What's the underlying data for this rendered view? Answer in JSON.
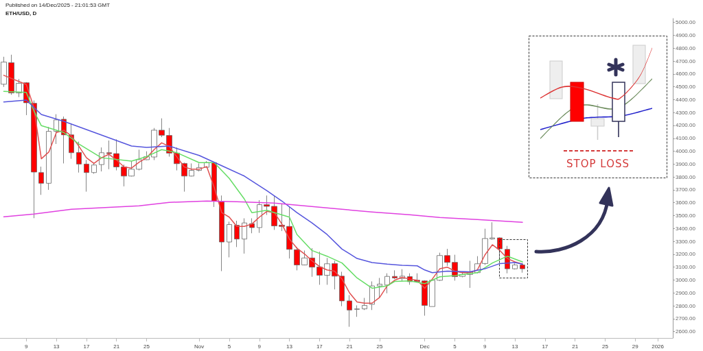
{
  "chart_data": {
    "type": "candlestick",
    "title": "ETH/USD, D",
    "subtitle": "Published on 14/Dec/2025 - 21:01:53 GMT",
    "annotations": [
      "STOP LOSS"
    ],
    "x": [
      "2025-10-06",
      "2025-10-07",
      "2025-10-08",
      "2025-10-09",
      "2025-10-10",
      "2025-10-11",
      "2025-10-12",
      "2025-10-13",
      "2025-10-14",
      "2025-10-15",
      "2025-10-16",
      "2025-10-17",
      "2025-10-18",
      "2025-10-19",
      "2025-10-20",
      "2025-10-21",
      "2025-10-22",
      "2025-10-23",
      "2025-10-24",
      "2025-10-25",
      "2025-10-26",
      "2025-10-27",
      "2025-10-28",
      "2025-10-29",
      "2025-10-30",
      "2025-10-31",
      "2025-11-01",
      "2025-11-02",
      "2025-11-03",
      "2025-11-04",
      "2025-11-05",
      "2025-11-06",
      "2025-11-07",
      "2025-11-08",
      "2025-11-09",
      "2025-11-10",
      "2025-11-11",
      "2025-11-12",
      "2025-11-13",
      "2025-11-14",
      "2025-11-15",
      "2025-11-16",
      "2025-11-17",
      "2025-11-18",
      "2025-11-19",
      "2025-11-20",
      "2025-11-21",
      "2025-11-22",
      "2025-11-23",
      "2025-11-24",
      "2025-11-25",
      "2025-11-26",
      "2025-11-27",
      "2025-11-28",
      "2025-11-29",
      "2025-11-30",
      "2025-12-01",
      "2025-12-02",
      "2025-12-03",
      "2025-12-04",
      "2025-12-05",
      "2025-12-06",
      "2025-12-07",
      "2025-12-08",
      "2025-12-09",
      "2025-12-10",
      "2025-12-11",
      "2025-12-12",
      "2025-12-13",
      "2025-12-14"
    ],
    "ohlc": [
      [
        4520,
        4733,
        4499,
        4692
      ],
      [
        4687,
        4749,
        4438,
        4452
      ],
      [
        4452,
        4560,
        4420,
        4527
      ],
      [
        4531,
        4536,
        4280,
        4376
      ],
      [
        4372,
        4394,
        3480,
        3838
      ],
      [
        3834,
        3880,
        3661,
        3751
      ],
      [
        3751,
        4189,
        3700,
        4154
      ],
      [
        4154,
        4287,
        4056,
        4243
      ],
      [
        4248,
        4269,
        3905,
        4127
      ],
      [
        4127,
        4216,
        3941,
        3988
      ],
      [
        3990,
        4074,
        3834,
        3900
      ],
      [
        3900,
        3932,
        3686,
        3834
      ],
      [
        3834,
        3905,
        3825,
        3893
      ],
      [
        3896,
        4029,
        3843,
        3988
      ],
      [
        3988,
        4083,
        3860,
        3981
      ],
      [
        3981,
        4092,
        3851,
        3878
      ],
      [
        3878,
        3896,
        3727,
        3807
      ],
      [
        3807,
        3923,
        3804,
        3860
      ],
      [
        3860,
        4012,
        3851,
        3934
      ],
      [
        3934,
        3999,
        3931,
        3957
      ],
      [
        3955,
        4180,
        3931,
        4163
      ],
      [
        4163,
        4255,
        4109,
        4124
      ],
      [
        4122,
        4180,
        3958,
        3985
      ],
      [
        3985,
        4029,
        3851,
        3903
      ],
      [
        3905,
        3911,
        3686,
        3807
      ],
      [
        3807,
        3905,
        3804,
        3851
      ],
      [
        3851,
        3905,
        3843,
        3873
      ],
      [
        3875,
        3923,
        3873,
        3911
      ],
      [
        3911,
        3917,
        3567,
        3612
      ],
      [
        3608,
        3656,
        3069,
        3295
      ],
      [
        3295,
        3453,
        3176,
        3431
      ],
      [
        3425,
        3460,
        3256,
        3318
      ],
      [
        3318,
        3479,
        3205,
        3443
      ],
      [
        3437,
        3479,
        3363,
        3407
      ],
      [
        3407,
        3620,
        3366,
        3585
      ],
      [
        3585,
        3656,
        3505,
        3572
      ],
      [
        3572,
        3656,
        3389,
        3420
      ],
      [
        3426,
        3594,
        3380,
        3416
      ],
      [
        3416,
        3567,
        3167,
        3238
      ],
      [
        3235,
        3256,
        3075,
        3117
      ],
      [
        3117,
        3229,
        3114,
        3171
      ],
      [
        3171,
        3247,
        3025,
        3100
      ],
      [
        3101,
        3220,
        2963,
        3037
      ],
      [
        3037,
        3171,
        2963,
        3126
      ],
      [
        3128,
        3149,
        2927,
        3030
      ],
      [
        3030,
        3064,
        2797,
        2838
      ],
      [
        2838,
        2883,
        2637,
        2767
      ],
      [
        2772,
        2803,
        2714,
        2776
      ],
      [
        2776,
        2861,
        2767,
        2803
      ],
      [
        2811,
        2989,
        2767,
        2954
      ],
      [
        2954,
        3016,
        2865,
        2968
      ],
      [
        2961,
        3052,
        2897,
        3028
      ],
      [
        3028,
        3075,
        3007,
        3016
      ],
      [
        3012,
        3084,
        2989,
        3030
      ],
      [
        3026,
        3052,
        2963,
        2987
      ],
      [
        2998,
        3052,
        2989,
        2989
      ],
      [
        2993,
        2998,
        2723,
        2803
      ],
      [
        2794,
        3007,
        2794,
        2998
      ],
      [
        2998,
        3212,
        2993,
        3190
      ],
      [
        3190,
        3242,
        3110,
        3137
      ],
      [
        3137,
        3196,
        2995,
        3026
      ],
      [
        3028,
        3064,
        3021,
        3043
      ],
      [
        3043,
        3149,
        2939,
        3061
      ],
      [
        3057,
        3185,
        3052,
        3126
      ],
      [
        3128,
        3398,
        3117,
        3322
      ],
      [
        3319,
        3448,
        3313,
        3327
      ],
      [
        3327,
        3331,
        3153,
        3242
      ],
      [
        3238,
        3265,
        3052,
        3087
      ],
      [
        3087,
        3128,
        3082,
        3117
      ],
      [
        3117,
        3132,
        3057,
        3087
      ]
    ],
    "colors": [
      "#ffffff",
      "#ff0000",
      "#ffffff",
      "#ff0000",
      "#ff0000",
      "#ff0000",
      "#ffffff",
      "#ffffff",
      "#ff0000",
      "#ff0000",
      "#ff0000",
      "#ff0000",
      "#ffffff",
      "#ffffff",
      "#ff0000",
      "#ff0000",
      "#ff0000",
      "#ffffff",
      "#ffffff",
      "#ffffff",
      "#ffffff",
      "#ff0000",
      "#ff0000",
      "#ff0000",
      "#ff0000",
      "#ffffff",
      "#ffffff",
      "#ffffff",
      "#ff0000",
      "#ff0000",
      "#ffffff",
      "#ff0000",
      "#ffffff",
      "#ff0000",
      "#ffffff",
      "#ff0000",
      "#ff0000",
      "#ff0000",
      "#ff0000",
      "#ff0000",
      "#ffffff",
      "#ff0000",
      "#ff0000",
      "#ffffff",
      "#ff0000",
      "#ff0000",
      "#ff0000",
      "#ffffff",
      "#ffffff",
      "#ffffff",
      "#ffffff",
      "#ffffff",
      "#ff0000",
      "#ffffff",
      "#ff0000",
      "#ff0000",
      "#ff0000",
      "#ffffff",
      "#ffffff",
      "#ff0000",
      "#ff0000",
      "#ffffff",
      "#ffffff",
      "#ffffff",
      "#ffffff",
      "#ffffff",
      "#ff0000",
      "#ff0000",
      "#ffffff",
      "#ff0000"
    ],
    "series": [
      {
        "type": "line",
        "color": "#e040e0",
        "x": [
          "2025-10-06",
          "2025-10-10",
          "2025-10-15",
          "2025-10-24",
          "2025-10-28",
          "2025-11-02",
          "2025-11-06",
          "2025-11-11",
          "2025-11-15",
          "2025-11-20",
          "2025-11-24",
          "2025-11-29",
          "2025-12-03",
          "2025-12-08",
          "2025-12-14"
        ],
        "values": [
          3491,
          3512,
          3549,
          3576,
          3603,
          3613,
          3608,
          3597,
          3576,
          3549,
          3528,
          3507,
          3485,
          3469,
          3448
        ]
      },
      {
        "type": "line",
        "color": "#5555dd",
        "x": [
          "2025-10-06",
          "2025-10-09",
          "2025-10-11",
          "2025-10-14",
          "2025-10-19",
          "2025-10-23",
          "2025-10-25",
          "2025-10-28",
          "2025-11-01",
          "2025-11-04",
          "2025-11-07",
          "2025-11-10",
          "2025-11-12",
          "2025-11-14",
          "2025-11-16",
          "2025-11-18",
          "2025-11-20",
          "2025-11-22",
          "2025-11-24",
          "2025-11-26",
          "2025-11-28",
          "2025-11-30",
          "2025-12-01",
          "2025-12-02",
          "2025-12-04",
          "2025-12-07",
          "2025-12-09",
          "2025-12-11",
          "2025-12-13",
          "2025-12-14"
        ],
        "values": [
          4382,
          4397,
          4285,
          4232,
          4125,
          4040,
          4029,
          4040,
          3967,
          3887,
          3807,
          3693,
          3613,
          3523,
          3443,
          3354,
          3240,
          3167,
          3135,
          3123,
          3114,
          3110,
          3078,
          3057,
          3069,
          3064,
          3087,
          3128,
          3135,
          3123
        ]
      },
      {
        "type": "line",
        "color": "#66dd66",
        "x": [
          "2025-10-06",
          "2025-10-09",
          "2025-10-10",
          "2025-10-11",
          "2025-10-14",
          "2025-10-16",
          "2025-10-19",
          "2025-10-23",
          "2025-10-25",
          "2025-10-27",
          "2025-10-29",
          "2025-11-01",
          "2025-11-03",
          "2025-11-05",
          "2025-11-07",
          "2025-11-08",
          "2025-11-10",
          "2025-11-13",
          "2025-11-14",
          "2025-11-16",
          "2025-11-18",
          "2025-11-20",
          "2025-11-22",
          "2025-11-24",
          "2025-11-26",
          "2025-11-27",
          "2025-11-29",
          "2025-12-01",
          "2025-12-03",
          "2025-12-05",
          "2025-12-08",
          "2025-12-10",
          "2025-12-12",
          "2025-12-14"
        ],
        "values": [
          4465,
          4456,
          4314,
          4198,
          4145,
          4056,
          3949,
          3923,
          3958,
          4012,
          3989,
          3911,
          3911,
          3789,
          3629,
          3523,
          3541,
          3488,
          3354,
          3229,
          3185,
          3132,
          3016,
          2936,
          2954,
          2989,
          2993,
          2972,
          3025,
          3034,
          3057,
          3132,
          3185,
          3141
        ]
      },
      {
        "type": "line",
        "color": "#e05050",
        "x": [
          "2025-10-06",
          "2025-10-09",
          "2025-10-10",
          "2025-10-11",
          "2025-10-12",
          "2025-10-13",
          "2025-10-14",
          "2025-10-15",
          "2025-10-16",
          "2025-10-17",
          "2025-10-18",
          "2025-10-19",
          "2025-10-20",
          "2025-10-21",
          "2025-10-22",
          "2025-10-23",
          "2025-10-24",
          "2025-10-25",
          "2025-10-26",
          "2025-10-27",
          "2025-10-28",
          "2025-10-29",
          "2025-10-30",
          "2025-10-31",
          "2025-11-01",
          "2025-11-02",
          "2025-11-03",
          "2025-11-04",
          "2025-11-05",
          "2025-11-06",
          "2025-11-07",
          "2025-11-08",
          "2025-11-09",
          "2025-11-10",
          "2025-11-11",
          "2025-11-12",
          "2025-11-13",
          "2025-11-14",
          "2025-11-15",
          "2025-11-16",
          "2025-11-17",
          "2025-11-18",
          "2025-11-19",
          "2025-11-20",
          "2025-11-21",
          "2025-11-22",
          "2025-11-23",
          "2025-11-24",
          "2025-11-25",
          "2025-11-26",
          "2025-11-27",
          "2025-11-28",
          "2025-11-29",
          "2025-11-30",
          "2025-12-01",
          "2025-12-02",
          "2025-12-03",
          "2025-12-04",
          "2025-12-05",
          "2025-12-06",
          "2025-12-07",
          "2025-12-08",
          "2025-12-09",
          "2025-12-10",
          "2025-12-11",
          "2025-12-12",
          "2025-12-13",
          "2025-12-14"
        ],
        "values": [
          4589,
          4518,
          4341,
          3941,
          3994,
          4145,
          4163,
          4118,
          4038,
          3949,
          3905,
          3949,
          3976,
          3932,
          3878,
          3869,
          3914,
          3949,
          4012,
          4065,
          4038,
          3958,
          3878,
          3860,
          3860,
          3881,
          3718,
          3523,
          3488,
          3416,
          3416,
          3434,
          3488,
          3533,
          3523,
          3434,
          3318,
          3247,
          3203,
          3149,
          3105,
          3078,
          3069,
          3007,
          2900,
          2829,
          2820,
          2820,
          2865,
          2954,
          2998,
          3021,
          3007,
          2998,
          2936,
          3007,
          3087,
          3100,
          3069,
          3057,
          3057,
          3078,
          3194,
          3274,
          3229,
          3167,
          3141,
          3123
        ]
      }
    ],
    "xlim": [
      "2025-10-05T12:00",
      "2026-01-03"
    ],
    "xticks": [
      {
        "value": "2025-10-09",
        "label": "9"
      },
      {
        "value": "2025-10-13",
        "label": "13"
      },
      {
        "value": "2025-10-17",
        "label": "17"
      },
      {
        "value": "2025-10-21",
        "label": "21"
      },
      {
        "value": "2025-10-25",
        "label": "25"
      },
      {
        "value": "2025-11-01",
        "label": "Nov"
      },
      {
        "value": "2025-11-05",
        "label": "5"
      },
      {
        "value": "2025-11-09",
        "label": "9"
      },
      {
        "value": "2025-11-13",
        "label": "13"
      },
      {
        "value": "2025-11-17",
        "label": "17"
      },
      {
        "value": "2025-11-21",
        "label": "21"
      },
      {
        "value": "2025-11-25",
        "label": "25"
      },
      {
        "value": "2025-12-01",
        "label": "Dec"
      },
      {
        "value": "2025-12-05",
        "label": "5"
      },
      {
        "value": "2025-12-09",
        "label": "9"
      },
      {
        "value": "2025-12-13",
        "label": "13"
      },
      {
        "value": "2025-12-17",
        "label": "17"
      },
      {
        "value": "2025-12-21",
        "label": "21"
      },
      {
        "value": "2025-12-25",
        "label": "25"
      },
      {
        "value": "2025-12-29",
        "label": "29"
      },
      {
        "value": "2026-01-01",
        "label": "2026"
      }
    ],
    "ylim": [
      2550,
      5030
    ],
    "yticks": [
      {
        "value": 2600,
        "label": "2600.00"
      },
      {
        "value": 2700,
        "label": "2700.00"
      },
      {
        "value": 2800,
        "label": "2800.00"
      },
      {
        "value": 2900,
        "label": "2900.00"
      },
      {
        "value": 3000,
        "label": "3000.00"
      },
      {
        "value": 3100,
        "label": "3100.00"
      },
      {
        "value": 3200,
        "label": "3200.00"
      },
      {
        "value": 3300,
        "label": "3300.00"
      },
      {
        "value": 3400,
        "label": "3400.00"
      },
      {
        "value": 3500,
        "label": "3500.00"
      },
      {
        "value": 3600,
        "label": "3600.00"
      },
      {
        "value": 3700,
        "label": "3700.00"
      },
      {
        "value": 3800,
        "label": "3800.00"
      },
      {
        "value": 3900,
        "label": "3900.00"
      },
      {
        "value": 4000,
        "label": "4000.00"
      },
      {
        "value": 4100,
        "label": "4100.00"
      },
      {
        "value": 4200,
        "label": "4200.00"
      },
      {
        "value": 4300,
        "label": "4300.00"
      },
      {
        "value": 4400,
        "label": "4400.00"
      },
      {
        "value": 4500,
        "label": "4500.00"
      },
      {
        "value": 4600,
        "label": "4600.00"
      },
      {
        "value": 4700,
        "label": "4700.00"
      },
      {
        "value": 4800,
        "label": "4800.00"
      },
      {
        "value": 4900,
        "label": "4900.00"
      },
      {
        "value": 5000,
        "label": "5000.00"
      }
    ],
    "grid": false,
    "marker": "none",
    "line_style": "solid"
  }
}
